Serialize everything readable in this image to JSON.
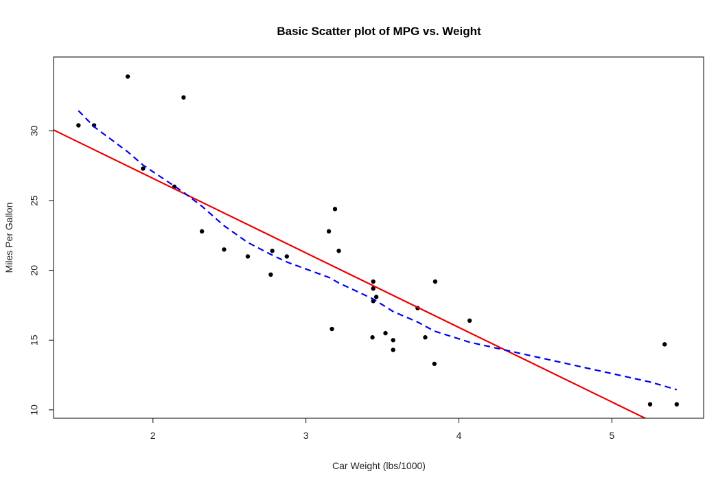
{
  "chart_data": {
    "type": "scatter",
    "title": "Basic Scatter plot of MPG vs. Weight",
    "xlabel": "Car Weight (lbs/1000)",
    "ylabel": "Miles Per Gallon",
    "xlim": [
      1.35,
      5.6
    ],
    "ylim": [
      9.4,
      35.3
    ],
    "xticks": [
      2,
      3,
      4,
      5
    ],
    "yticks": [
      10,
      15,
      20,
      25,
      30
    ],
    "grid": false,
    "points": {
      "x": [
        2.62,
        2.875,
        2.32,
        3.215,
        3.44,
        3.46,
        3.57,
        3.19,
        3.15,
        3.44,
        3.44,
        4.07,
        3.73,
        3.78,
        5.25,
        5.424,
        5.345,
        2.2,
        1.615,
        1.835,
        2.465,
        3.52,
        3.435,
        3.84,
        3.845,
        1.935,
        2.14,
        1.513,
        3.17,
        2.77,
        3.57,
        2.78
      ],
      "y": [
        21.0,
        21.0,
        22.8,
        21.4,
        18.7,
        18.1,
        14.3,
        24.4,
        22.8,
        19.2,
        17.8,
        16.4,
        17.3,
        15.2,
        10.4,
        10.4,
        14.7,
        32.4,
        30.4,
        33.9,
        21.5,
        15.5,
        15.2,
        13.3,
        19.2,
        27.3,
        26.0,
        30.4,
        15.8,
        19.7,
        15.0,
        21.4
      ],
      "color": "#000000"
    },
    "regression_line": {
      "intercept": 37.285,
      "slope": -5.344,
      "color": "#ee0000"
    },
    "lowess_line": {
      "x": [
        1.513,
        1.615,
        1.835,
        1.935,
        2.14,
        2.2,
        2.32,
        2.465,
        2.62,
        2.77,
        2.875,
        3.15,
        3.215,
        3.44,
        3.57,
        3.73,
        3.84,
        4.07,
        5.25,
        5.424
      ],
      "y": [
        31.45,
        30.3,
        28.5,
        27.55,
        26.05,
        25.6,
        24.6,
        23.2,
        22.0,
        21.15,
        20.6,
        19.5,
        19.1,
        17.95,
        17.05,
        16.3,
        15.65,
        14.85,
        12.0,
        11.45
      ],
      "color": "#0000ee"
    }
  }
}
